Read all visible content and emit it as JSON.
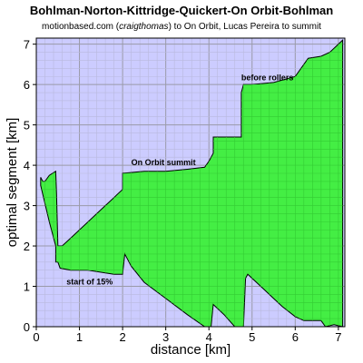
{
  "title": "Bohlman-Norton-Kittridge-Quickert-On Orbit-Bohlman",
  "subtitle": {
    "prefix": "motionbased.com (",
    "author": "craigthomas",
    "suffix": ") to On Orbit, Lucas Pereira to summit"
  },
  "colors": {
    "plot_bg": "#ccccff",
    "fill": "#44ee44",
    "grid": "#9999bb",
    "outline": "#000000"
  },
  "chart_data": {
    "type": "area",
    "xlabel": "distance [km]",
    "ylabel": "optimal segment [km]",
    "xlim": [
      0,
      7.15
    ],
    "ylim": [
      0,
      7.15
    ],
    "xticks": [
      "0",
      "1",
      "2",
      "3",
      "4",
      "5",
      "6",
      "7"
    ],
    "yticks": [
      "0",
      "1",
      "2",
      "3",
      "4",
      "5",
      "6",
      "7"
    ],
    "grid": true,
    "upper": [
      [
        0.1,
        3.7
      ],
      [
        0.15,
        3.6
      ],
      [
        0.2,
        3.6
      ],
      [
        0.3,
        3.75
      ],
      [
        0.45,
        3.85
      ],
      [
        0.47,
        3.3
      ],
      [
        0.5,
        2.0
      ],
      [
        0.6,
        2.0
      ],
      [
        0.8,
        2.2
      ],
      [
        1.0,
        2.4
      ],
      [
        1.2,
        2.6
      ],
      [
        1.5,
        2.9
      ],
      [
        1.8,
        3.2
      ],
      [
        1.9,
        3.3
      ],
      [
        2.0,
        3.4
      ],
      [
        2.0,
        3.8
      ],
      [
        2.5,
        3.85
      ],
      [
        3.0,
        3.85
      ],
      [
        3.5,
        3.9
      ],
      [
        3.9,
        3.95
      ],
      [
        4.0,
        4.1
      ],
      [
        4.1,
        4.3
      ],
      [
        4.1,
        4.7
      ],
      [
        4.75,
        4.7
      ],
      [
        4.75,
        5.8
      ],
      [
        4.8,
        6.0
      ],
      [
        5.0,
        6.0
      ],
      [
        5.5,
        6.05
      ],
      [
        6.0,
        6.2
      ],
      [
        6.2,
        6.5
      ],
      [
        6.3,
        6.65
      ],
      [
        6.6,
        6.7
      ],
      [
        6.8,
        6.8
      ],
      [
        7.1,
        7.1
      ]
    ],
    "lower": [
      [
        7.1,
        0.0
      ],
      [
        6.9,
        0.05
      ],
      [
        6.7,
        0.0
      ],
      [
        6.6,
        0.15
      ],
      [
        6.2,
        0.15
      ],
      [
        6.0,
        0.25
      ],
      [
        5.7,
        0.5
      ],
      [
        5.5,
        0.7
      ],
      [
        5.2,
        1.0
      ],
      [
        4.9,
        1.3
      ],
      [
        4.85,
        1.2
      ],
      [
        4.8,
        0.0
      ],
      [
        4.6,
        0.0
      ],
      [
        4.35,
        0.3
      ],
      [
        4.1,
        0.55
      ],
      [
        4.05,
        0.0
      ],
      [
        3.9,
        0.0
      ],
      [
        3.5,
        0.3
      ],
      [
        3.0,
        0.7
      ],
      [
        2.5,
        1.1
      ],
      [
        2.2,
        1.5
      ],
      [
        2.05,
        1.8
      ],
      [
        2.0,
        1.3
      ],
      [
        1.8,
        1.3
      ],
      [
        1.5,
        1.35
      ],
      [
        1.2,
        1.4
      ],
      [
        0.8,
        1.4
      ],
      [
        0.55,
        1.45
      ],
      [
        0.5,
        1.6
      ],
      [
        0.45,
        1.6
      ],
      [
        0.45,
        2.0
      ],
      [
        0.3,
        2.6
      ],
      [
        0.1,
        3.5
      ]
    ],
    "annotations": [
      {
        "text": "On Orbit summit",
        "x": 2.2,
        "y": 4.0
      },
      {
        "text": "before rollers",
        "x": 4.75,
        "y": 6.1
      },
      {
        "text": "start of 15%",
        "x": 0.7,
        "y": 1.05
      }
    ]
  }
}
